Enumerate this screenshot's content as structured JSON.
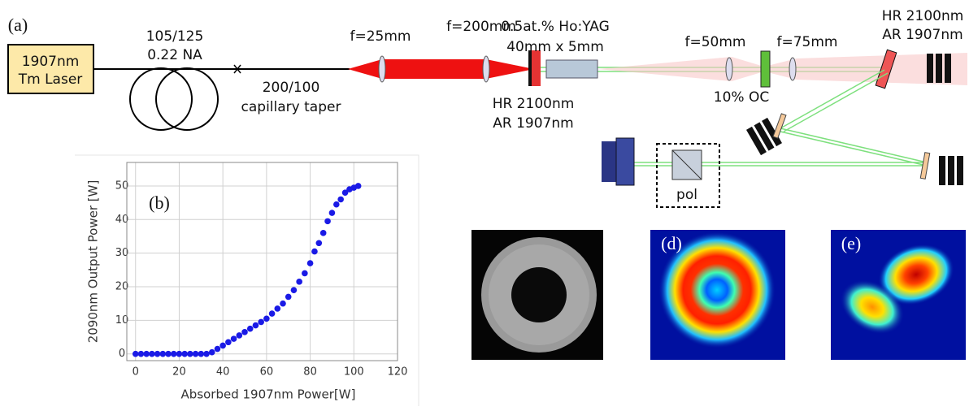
{
  "figure": {
    "panel_a": "(a)",
    "laser": [
      "1907nm",
      "Tm Laser"
    ],
    "fiber": [
      "105/125",
      "0.22 NA"
    ],
    "taper": [
      "200/100",
      "capillary taper"
    ],
    "lens_1": "f=25mm",
    "lens_2": "f=200mm",
    "crystal": [
      "0.5at.% Ho:YAG",
      "40mm x 5mm"
    ],
    "input_mirror": [
      "HR 2100nm",
      "AR 1907nm"
    ],
    "lens_3": "f=50mm",
    "lens_4": "f=75mm",
    "output_coupler": "10% OC",
    "end_mirror": [
      "HR 2100nm",
      "AR 1907nm"
    ],
    "polarizer": "pol",
    "panel_d": "(d)",
    "panel_e": "(e)"
  },
  "chart_data": {
    "type": "scatter",
    "annotation": "(b)",
    "x_label": "Absorbed 1907nm Power[W]",
    "y_label": "2090nm Output Power [W]",
    "x": [
      0,
      2.5,
      5,
      7.5,
      10,
      12.5,
      15,
      17.5,
      20,
      22.5,
      25,
      27.5,
      30,
      32.5,
      35,
      37.5,
      40,
      42.5,
      45,
      47.5,
      50,
      52.5,
      55,
      57.5,
      60,
      62.5,
      65,
      67.5,
      70,
      72.5,
      75,
      77.5,
      80,
      82,
      84,
      86,
      88,
      90,
      92,
      94,
      96,
      98,
      100,
      102
    ],
    "y": [
      0,
      0,
      0,
      0,
      0,
      0,
      0,
      0,
      0,
      0,
      0,
      0,
      0,
      0,
      0.5,
      1.5,
      2.5,
      3.5,
      4.5,
      5.5,
      6.5,
      7.5,
      8.5,
      9.5,
      10.5,
      12,
      13.5,
      15,
      17,
      19,
      21.5,
      24,
      27,
      30.5,
      33,
      36,
      39.5,
      42,
      44.5,
      46,
      48,
      49,
      49.5,
      50
    ],
    "color": "#1a1ae6",
    "xlim": [
      -4,
      120
    ],
    "ylim": [
      -2,
      57
    ],
    "xticks": [
      0,
      20,
      40,
      60,
      80,
      100,
      120
    ],
    "yticks": [
      0,
      10,
      20,
      30,
      40,
      50
    ],
    "grid": true
  }
}
